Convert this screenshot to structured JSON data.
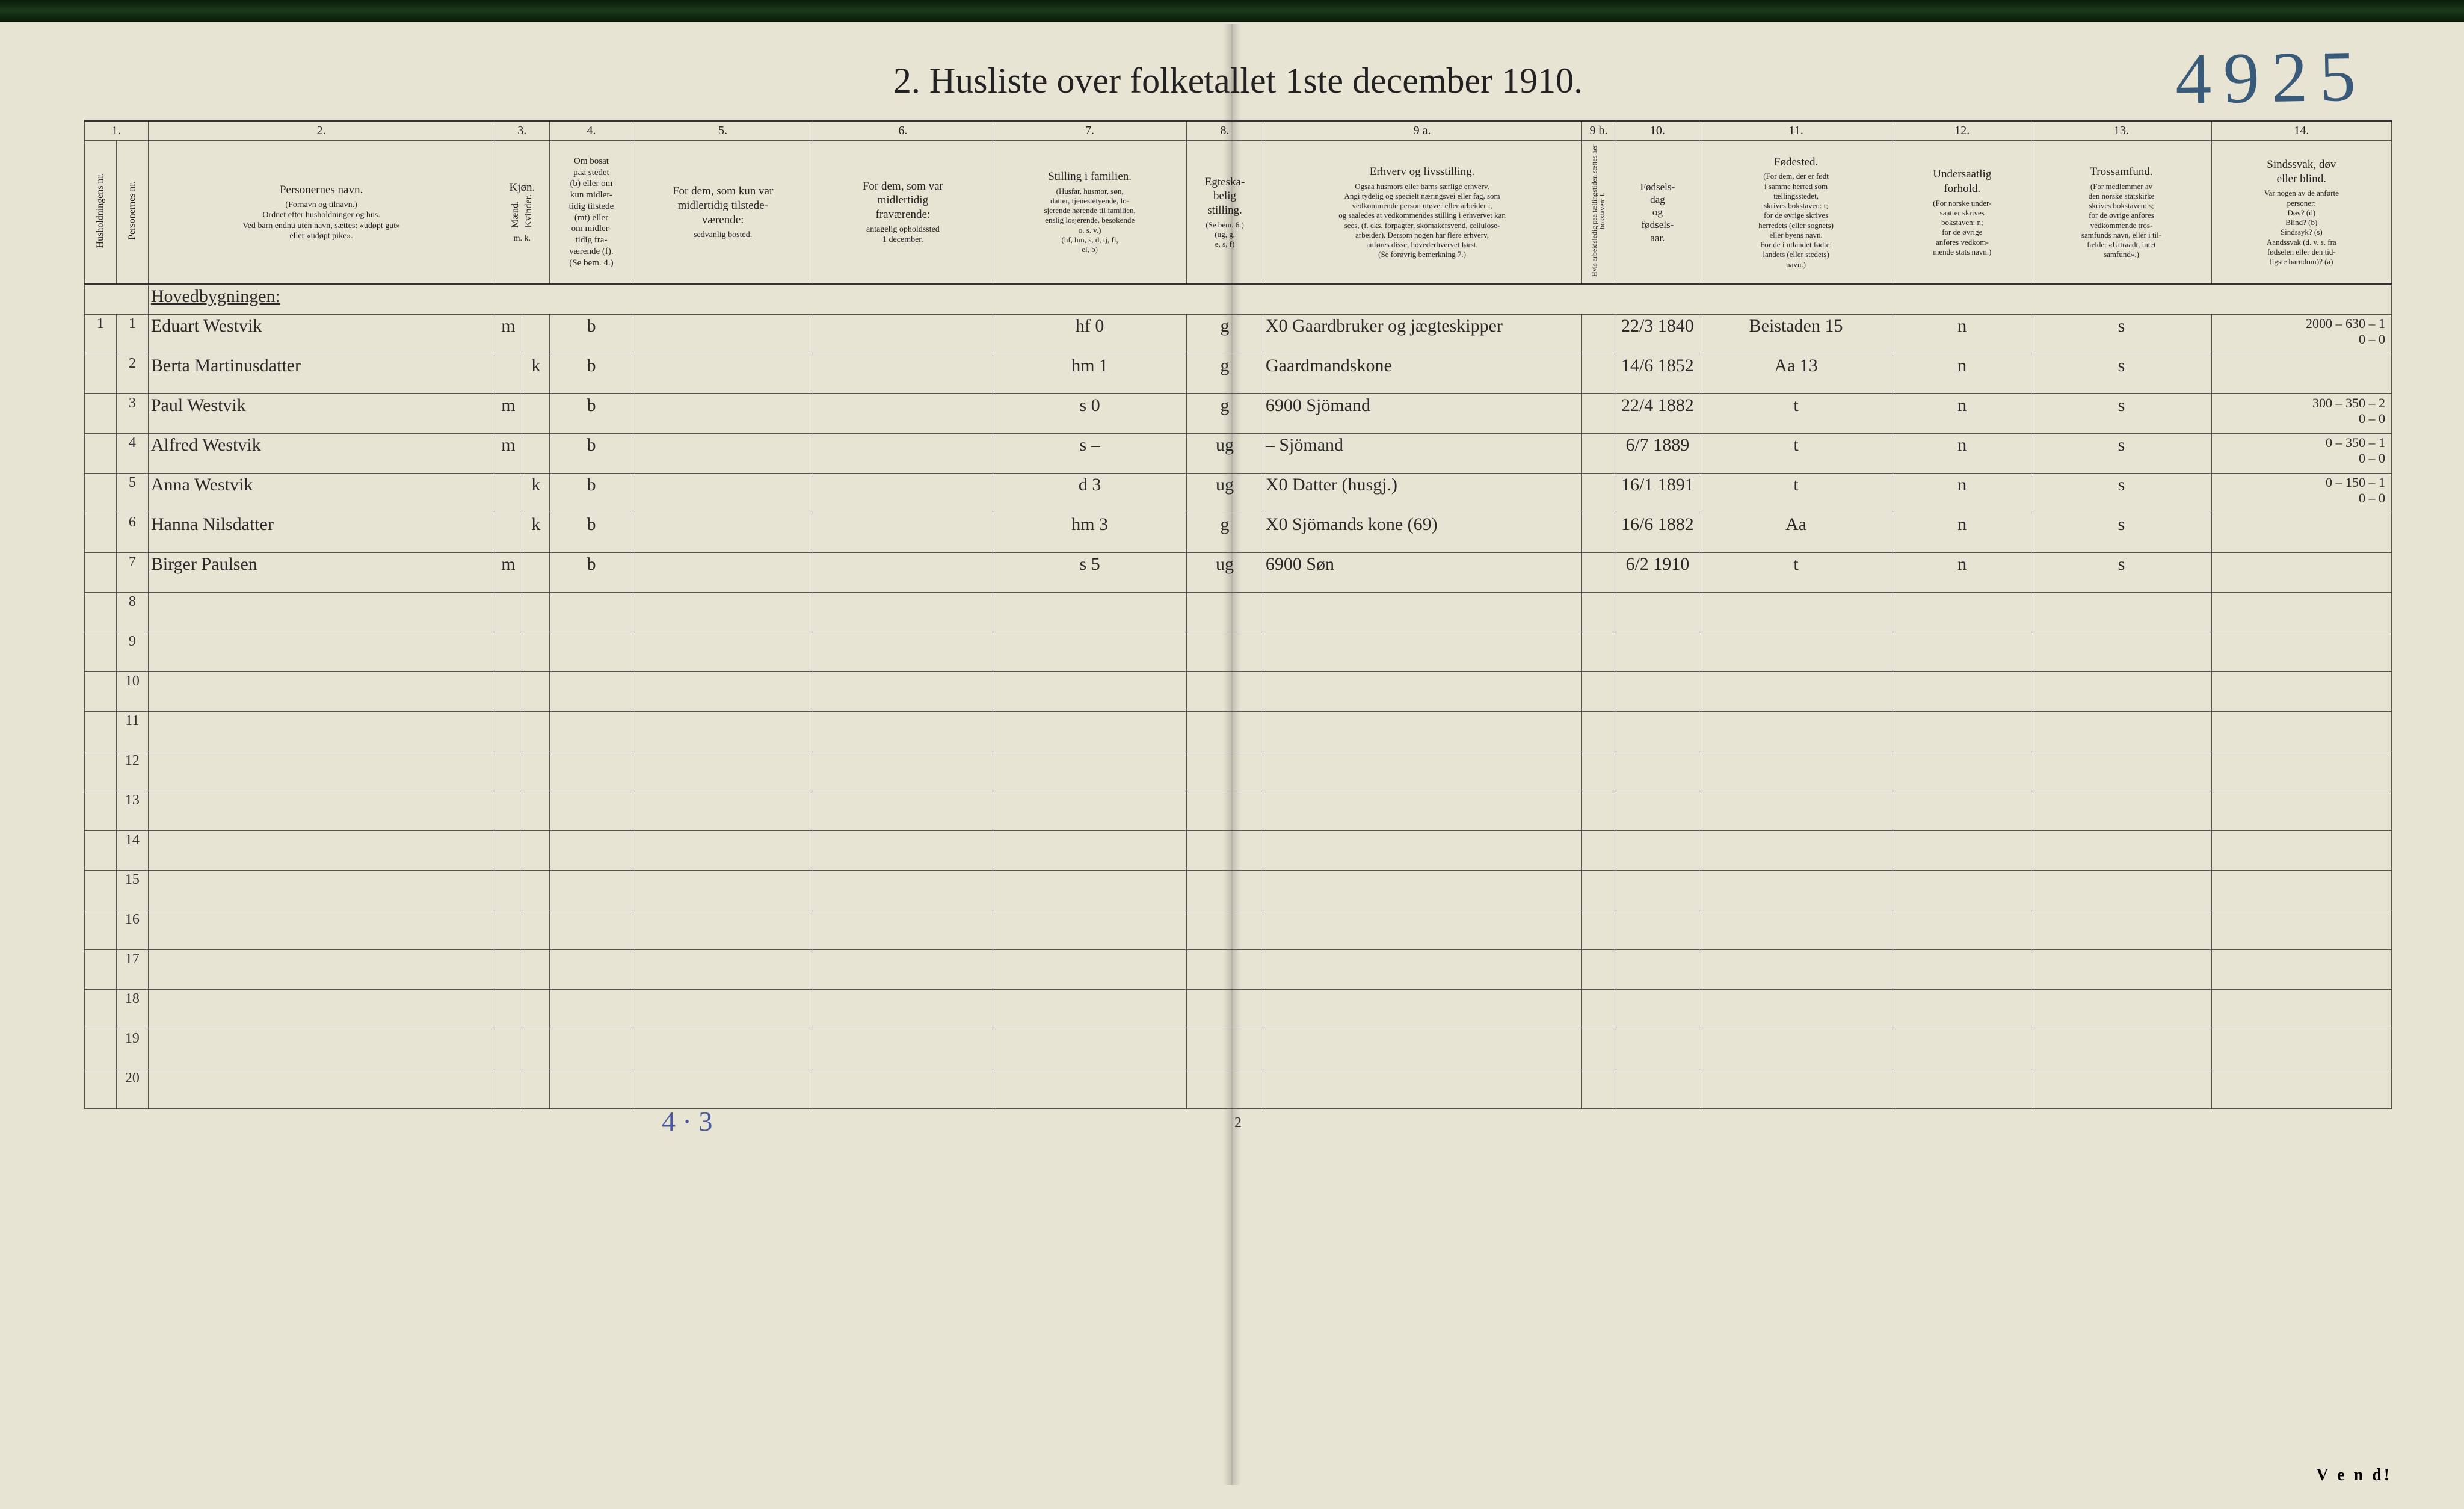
{
  "page": {
    "handwritten_number": "4925",
    "title": "2.   Husliste over folketallet 1ste december 1910.",
    "footer_pagenum": "2",
    "bottom_handnote": "4 · 3",
    "vend": "V e n d!"
  },
  "column_numbers": [
    "1.",
    "2.",
    "3.",
    "4.",
    "5.",
    "6.",
    "7.",
    "8.",
    "9 a.",
    "9 b.",
    "10.",
    "11.",
    "12.",
    "13.",
    "14."
  ],
  "headers": {
    "c1a": "Husholdningens nr.",
    "c1b": "Personernes nr.",
    "c2_main": "Personernes navn.",
    "c2_sub": "(Fornavn og tilnavn.)\nOrdnet efter husholdninger og hus.\nVed barn endnu uten navn, sættes: «udøpt gut»\neller «udøpt pike».",
    "c3_main": "Kjøn.",
    "c3a": "Mænd.",
    "c3b": "Kvinder.",
    "c3_sub": "m.  k.",
    "c4_main": "Om bosat\npaa stedet\n(b) eller om\nkun midler-\ntidig tilstede\n(mt) eller\nom midler-\ntidig fra-\nværende (f).\n(Se bem. 4.)",
    "c5_main": "For dem, som kun var\nmidlertidig tilstede-\nværende:",
    "c5_sub": "sedvanlig bosted.",
    "c6_main": "For dem, som var\nmidlertidig\nfraværende:",
    "c6_sub": "antagelig opholdssted\n1 december.",
    "c7_main": "Stilling i familien.",
    "c7_sub": "(Husfar, husmor, søn,\ndatter, tjenestetyende, lo-\nsjerende hørende til familien,\nenslig losjerende, besøkende\no. s. v.)\n(hf, hm, s, d, tj, fl,\nel, b)",
    "c8_main": "Egteska-\nbelig\nstilling.",
    "c8_sub": "(Se bem. 6.)\n(ug, g,\ne, s, f)",
    "c9a_main": "Erhverv og livsstilling.",
    "c9a_sub": "Ogsaa husmors eller barns særlige erhverv.\nAngi tydelig og specielt næringsvei eller fag, som\nvedkommende person utøver eller arbeider i,\nog saaledes at vedkommendes stilling i erhvervet kan\nsees, (f. eks. forpagter, skomakersvend, cellulose-\narbeider). Dersom nogen har flere erhverv,\nanføres disse, hovederhvervet først.\n(Se forøvrig bemerkning 7.)",
    "c9b": "Hvis arbeidsledig\npaa tællingstiden sættes\nher bokstaven: l.",
    "c10_main": "Fødsels-\ndag\nog\nfødsels-\naar.",
    "c11_main": "Fødested.",
    "c11_sub": "(For dem, der er født\ni samme herred som\ntællingsstedet,\nskrives bokstaven: t;\nfor de øvrige skrives\nherredets (eller sognets)\neller byens navn.\nFor de i utlandet fødte:\nlandets (eller stedets)\nnavn.)",
    "c12_main": "Undersaatlig\nforhold.",
    "c12_sub": "(For norske under-\nsaatter skrives\nbokstaven: n;\nfor de øvrige\nanføres vedkom-\nmende stats navn.)",
    "c13_main": "Trossamfund.",
    "c13_sub": "(For medlemmer av\nden norske statskirke\nskrives bokstaven: s;\nfor de øvrige anføres\nvedkommende tros-\nsamfunds navn, eller i til-\nfælde: «Uttraadt, intet\nsamfund».)",
    "c14_main": "Sindssvak, døv\neller blind.",
    "c14_sub": "Var nogen av de anførte\npersoner:\nDøv?        (d)\nBlind?      (b)\nSindssyk? (s)\nAandssvak (d. v. s. fra\nfødselen eller den tid-\nligste barndom)?  (a)"
  },
  "section_heading": "Hovedbygningen:",
  "rows": [
    {
      "hnr": "1",
      "pnr": "1",
      "name": "Eduart Westvik",
      "m": "m",
      "k": "",
      "b": "b",
      "c5": "",
      "c6": "",
      "fam": "hf",
      "famnote": "0",
      "egt": "g",
      "erhv": "X0  Gaardbruker og jægteskipper",
      "dob": "22/3 1840",
      "fst": "Beistaden  15",
      "und": "n",
      "tro": "s",
      "note": "2000 – 630 – 1\n0 – 0"
    },
    {
      "hnr": "",
      "pnr": "2",
      "name": "Berta Martinusdatter",
      "m": "",
      "k": "k",
      "b": "b",
      "c5": "",
      "c6": "",
      "fam": "hm",
      "famnote": "1",
      "egt": "g",
      "erhv": "Gaardmandskone",
      "dob": "14/6 1852",
      "fst": "Aa   13",
      "und": "n",
      "tro": "s",
      "note": ""
    },
    {
      "hnr": "",
      "pnr": "3",
      "name": "Paul Westvik",
      "m": "m",
      "k": "",
      "b": "b",
      "c5": "",
      "c6": "",
      "fam": "s",
      "famnote": "0",
      "egt": "g",
      "erhv": "6900 Sjömand",
      "dob": "22/4 1882",
      "fst": "t",
      "und": "n",
      "tro": "s",
      "note": "300 – 350 – 2\n0 – 0"
    },
    {
      "hnr": "",
      "pnr": "4",
      "name": "Alfred Westvik",
      "m": "m",
      "k": "",
      "b": "b",
      "c5": "",
      "c6": "",
      "fam": "s",
      "famnote": "–",
      "egt": "ug",
      "erhv": "–   Sjömand",
      "dob": "6/7 1889",
      "fst": "t",
      "und": "n",
      "tro": "s",
      "note": "0 – 350 – 1\n0 – 0"
    },
    {
      "hnr": "",
      "pnr": "5",
      "name": "Anna Westvik",
      "m": "",
      "k": "k",
      "b": "b",
      "c5": "",
      "c6": "",
      "fam": "d",
      "famnote": "3",
      "egt": "ug",
      "erhv": "X0   Datter (husgj.)",
      "dob": "16/1 1891",
      "fst": "t",
      "und": "n",
      "tro": "s",
      "note": "0 – 150 – 1\n0 – 0"
    },
    {
      "hnr": "",
      "pnr": "6",
      "name": "Hanna Nilsdatter",
      "m": "",
      "k": "k",
      "b": "b",
      "c5": "",
      "c6": "",
      "fam": "hm",
      "famnote": "3",
      "egt": "g",
      "erhv": "X0  Sjömands kone (69)",
      "dob": "16/6 1882",
      "fst": "Aa",
      "und": "n",
      "tro": "s",
      "note": ""
    },
    {
      "hnr": "",
      "pnr": "7",
      "name": "Birger Paulsen",
      "m": "m",
      "k": "",
      "b": "b",
      "c5": "",
      "c6": "",
      "fam": "s",
      "famnote": "5",
      "egt": "ug",
      "erhv": "6900   Søn",
      "dob": "6/2 1910",
      "fst": "t",
      "und": "n",
      "tro": "s",
      "note": ""
    }
  ],
  "empty_rows": [
    8,
    9,
    10,
    11,
    12,
    13,
    14,
    15,
    16,
    17,
    18,
    19,
    20
  ]
}
